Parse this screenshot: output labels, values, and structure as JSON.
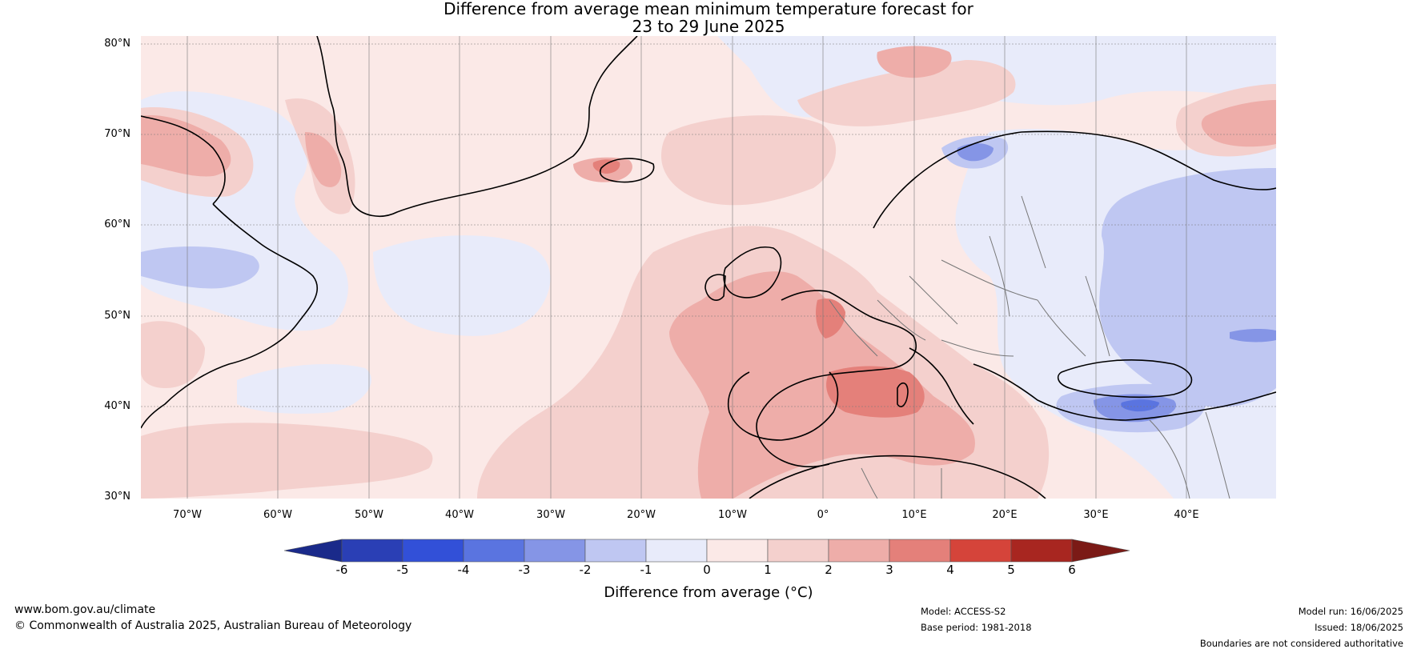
{
  "title_line1": "Difference from average mean minimum temperature forecast for",
  "title_line2": "23 to 29 June 2025",
  "lat_labels": [
    "80°N",
    "70°N",
    "60°N",
    "50°N",
    "40°N",
    "30°N"
  ],
  "lon_labels": [
    "70°W",
    "60°W",
    "50°W",
    "40°W",
    "30°W",
    "20°W",
    "10°W",
    "0°",
    "10°E",
    "20°E",
    "30°E",
    "40°E"
  ],
  "colorbar": {
    "ticks": [
      "-6",
      "-5",
      "-4",
      "-3",
      "-2",
      "-1",
      "0",
      "1",
      "2",
      "3",
      "4",
      "5",
      "6"
    ],
    "label": "Difference from average (°C)",
    "colors": [
      "#1a2a8a",
      "#2a3fb5",
      "#3250d8",
      "#5a74e0",
      "#8595e6",
      "#bfc7f2",
      "#e8ebfa",
      "#fbe9e7",
      "#f4d0cd",
      "#eeada9",
      "#e4807a",
      "#d5443a",
      "#a82620",
      "#7b1a16"
    ]
  },
  "footer": {
    "website": "www.bom.gov.au/climate",
    "copyright": "© Commonwealth of Australia 2025, Australian Bureau of Meteorology",
    "model": "Model: ACCESS-S2",
    "base_period": "Base period: 1981-2018",
    "model_run": "Model run: 16/06/2025",
    "issued": "Issued: 18/06/2025",
    "disclaimer": "Boundaries are not considered authoritative"
  }
}
